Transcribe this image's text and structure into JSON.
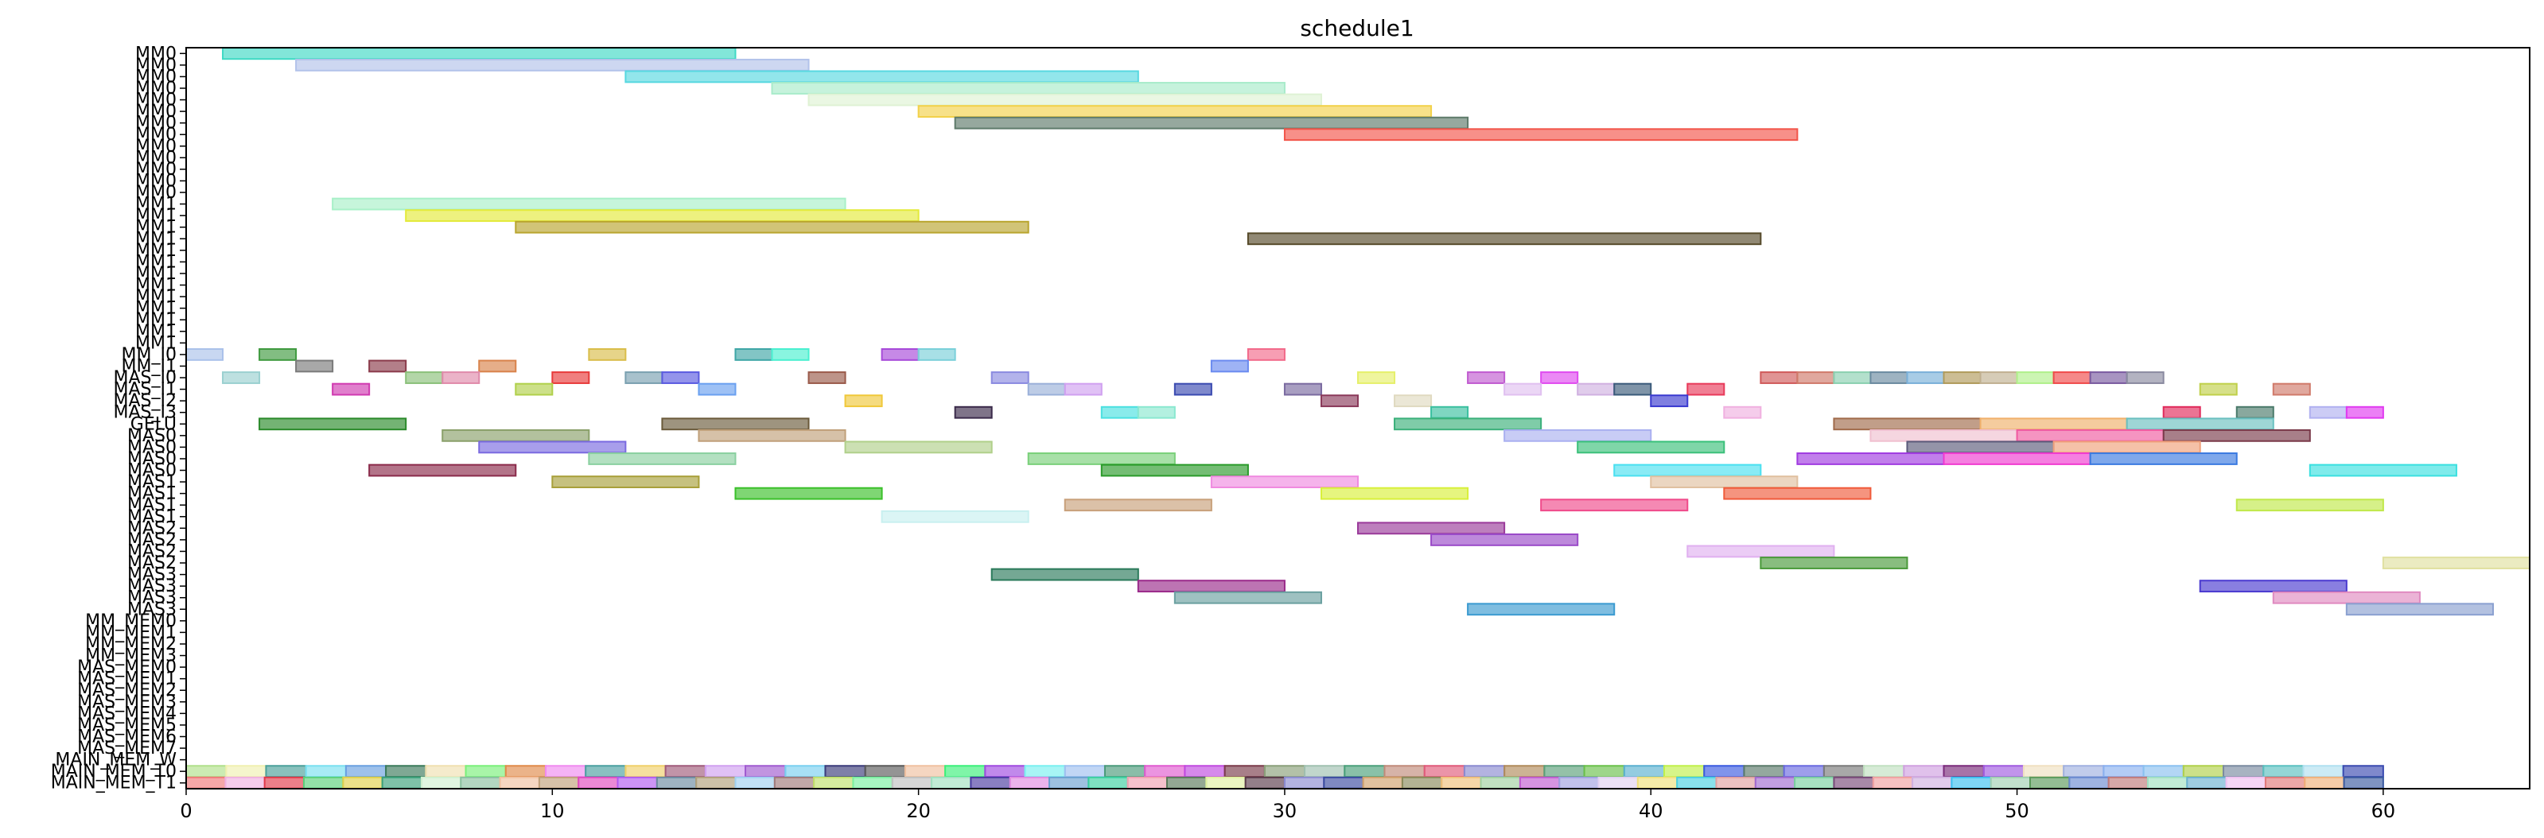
{
  "chart_data": {
    "type": "gantt",
    "title": "schedule1",
    "xlabel": "",
    "ylabel": "",
    "xlim": [
      0,
      64
    ],
    "xticks": [
      0,
      10,
      20,
      30,
      40,
      50,
      60
    ],
    "grid": false,
    "rows": [
      "MM0",
      "MM0",
      "MM0",
      "MM0",
      "MM0",
      "MM0",
      "MM0",
      "MM0",
      "MM0",
      "MM0",
      "MM0",
      "MM0",
      "MM0",
      "MM1",
      "MM1",
      "MM1",
      "MM1",
      "MM1",
      "MM1",
      "MM1",
      "MM1",
      "MM1",
      "MM1",
      "MM1",
      "MM1",
      "MM1",
      "MM_I0",
      "MM_I1",
      "MAS_I0",
      "MAS_I1",
      "MAS_I2",
      "MAS_I3",
      "GELU",
      "MAS0",
      "MAS0",
      "MAS0",
      "MAS0",
      "MAS1",
      "MAS1",
      "MAS1",
      "MAS1",
      "MAS2",
      "MAS2",
      "MAS2",
      "MAS2",
      "MAS3",
      "MAS3",
      "MAS3",
      "MAS3",
      "MM_MEM0",
      "MM_MEM1",
      "MM_MEM2",
      "MM_MEM3",
      "MAS_MEM0",
      "MAS_MEM1",
      "MAS_MEM2",
      "MAS_MEM3",
      "MAS_MEM4",
      "MAS_MEM5",
      "MAS_MEM6",
      "MAS_MEM7",
      "MAIN_MEM_W",
      "MAIN_MEM_T0",
      "MAIN_MEM_T1"
    ],
    "tasks": [
      {
        "row": 0,
        "start": 1,
        "end": 15,
        "color": "#3fd9c4"
      },
      {
        "row": 1,
        "start": 3,
        "end": 17,
        "color": "#b2c2ea"
      },
      {
        "row": 2,
        "start": 12,
        "end": 26,
        "color": "#57d8e0"
      },
      {
        "row": 3,
        "start": 16,
        "end": 30,
        "color": "#a8ebca"
      },
      {
        "row": 4,
        "start": 17,
        "end": 31,
        "color": "#dff2d4"
      },
      {
        "row": 5,
        "start": 20,
        "end": 34,
        "color": "#f2d14a"
      },
      {
        "row": 6,
        "start": 21,
        "end": 35,
        "color": "#5e7a6a"
      },
      {
        "row": 7,
        "start": 30,
        "end": 44,
        "color": "#f2554a"
      },
      {
        "row": 13,
        "start": 4,
        "end": 18,
        "color": "#a8f0c8"
      },
      {
        "row": 14,
        "start": 6,
        "end": 20,
        "color": "#e3ea3a"
      },
      {
        "row": 15,
        "start": 9,
        "end": 23,
        "color": "#b9a52e"
      },
      {
        "row": 16,
        "start": 29,
        "end": 43,
        "color": "#564a2a"
      },
      {
        "row": 26,
        "start": 0,
        "end": 1,
        "color": "#aac1ea"
      },
      {
        "row": 26,
        "start": 2,
        "end": 3,
        "color": "#3f9a3f"
      },
      {
        "row": 26,
        "start": 11,
        "end": 12,
        "color": "#d9bd4a"
      },
      {
        "row": 26,
        "start": 15,
        "end": 16,
        "color": "#3fa6a6"
      },
      {
        "row": 26,
        "start": 16,
        "end": 17,
        "color": "#4af0d0"
      },
      {
        "row": 26,
        "start": 19,
        "end": 20,
        "color": "#a74ad9"
      },
      {
        "row": 26,
        "start": 20,
        "end": 21,
        "color": "#7ad0d9"
      },
      {
        "row": 26,
        "start": 29,
        "end": 30,
        "color": "#f26a8a"
      },
      {
        "row": 27,
        "start": 3,
        "end": 4,
        "color": "#7a7a7a"
      },
      {
        "row": 27,
        "start": 5,
        "end": 6,
        "color": "#8a3a4a"
      },
      {
        "row": 27,
        "start": 8,
        "end": 9,
        "color": "#d9824a"
      },
      {
        "row": 27,
        "start": 28,
        "end": 29,
        "color": "#6a8af0"
      },
      {
        "row": 28,
        "start": 1,
        "end": 2,
        "color": "#9ad0d0"
      },
      {
        "row": 28,
        "start": 6,
        "end": 7,
        "color": "#8ac07a"
      },
      {
        "row": 28,
        "start": 7,
        "end": 8,
        "color": "#e08aaa"
      },
      {
        "row": 28,
        "start": 10,
        "end": 11,
        "color": "#e83a3a"
      },
      {
        "row": 28,
        "start": 12,
        "end": 13,
        "color": "#7aa0b0"
      },
      {
        "row": 28,
        "start": 13,
        "end": 14,
        "color": "#5a5ae0"
      },
      {
        "row": 28,
        "start": 17,
        "end": 18,
        "color": "#9a5a4a"
      },
      {
        "row": 28,
        "start": 22,
        "end": 23,
        "color": "#8a8ae0"
      },
      {
        "row": 28,
        "start": 32,
        "end": 33,
        "color": "#e6f06a"
      },
      {
        "row": 28,
        "start": 35,
        "end": 36,
        "color": "#c05ad0"
      },
      {
        "row": 28,
        "start": 37,
        "end": 38,
        "color": "#e04af0"
      },
      {
        "row": 28,
        "start": 43,
        "end": 44,
        "color": "#d05a5a"
      },
      {
        "row": 28,
        "start": 44,
        "end": 45,
        "color": "#d07a6a"
      },
      {
        "row": 28,
        "start": 45,
        "end": 46,
        "color": "#8ad0b0"
      },
      {
        "row": 28,
        "start": 46,
        "end": 47,
        "color": "#6a8aa0"
      },
      {
        "row": 28,
        "start": 47,
        "end": 48,
        "color": "#7ab0d9"
      },
      {
        "row": 28,
        "start": 48,
        "end": 49,
        "color": "#b09a5a"
      },
      {
        "row": 28,
        "start": 49,
        "end": 50,
        "color": "#c0b090"
      },
      {
        "row": 28,
        "start": 50,
        "end": 51,
        "color": "#b0f08a"
      },
      {
        "row": 28,
        "start": 51,
        "end": 52,
        "color": "#f04a4a"
      },
      {
        "row": 28,
        "start": 52,
        "end": 53,
        "color": "#7a5aa0"
      },
      {
        "row": 28,
        "start": 53,
        "end": 54,
        "color": "#8a8aa0"
      },
      {
        "row": 29,
        "start": 4,
        "end": 5,
        "color": "#d03ab0"
      },
      {
        "row": 29,
        "start": 9,
        "end": 10,
        "color": "#b0d04a"
      },
      {
        "row": 29,
        "start": 14,
        "end": 15,
        "color": "#6aa0f0"
      },
      {
        "row": 29,
        "start": 23,
        "end": 24,
        "color": "#9ab0d9"
      },
      {
        "row": 29,
        "start": 24,
        "end": 25,
        "color": "#d0a0f0"
      },
      {
        "row": 29,
        "start": 27,
        "end": 28,
        "color": "#3a4ab0"
      },
      {
        "row": 29,
        "start": 30,
        "end": 31,
        "color": "#7a6aa0"
      },
      {
        "row": 29,
        "start": 36,
        "end": 37,
        "color": "#e0c0f0"
      },
      {
        "row": 29,
        "start": 38,
        "end": 39,
        "color": "#d0b0e0"
      },
      {
        "row": 29,
        "start": 39,
        "end": 40,
        "color": "#3a5a7a"
      },
      {
        "row": 29,
        "start": 41,
        "end": 42,
        "color": "#e83a5a"
      },
      {
        "row": 29,
        "start": 55,
        "end": 56,
        "color": "#c0d04a"
      },
      {
        "row": 29,
        "start": 57,
        "end": 58,
        "color": "#d07a6a"
      },
      {
        "row": 30,
        "start": 18,
        "end": 19,
        "color": "#f0c83a"
      },
      {
        "row": 30,
        "start": 33,
        "end": 34,
        "color": "#e0dac0"
      },
      {
        "row": 30,
        "start": 40,
        "end": 41,
        "color": "#3a3ad0"
      },
      {
        "row": 30,
        "start": 31,
        "end": 32,
        "color": "#8a3a5a"
      },
      {
        "row": 31,
        "start": 21,
        "end": 22,
        "color": "#3a2a4a"
      },
      {
        "row": 31,
        "start": 25,
        "end": 26,
        "color": "#4ae0e0"
      },
      {
        "row": 31,
        "start": 26,
        "end": 27,
        "color": "#8ae8d0"
      },
      {
        "row": 31,
        "start": 34,
        "end": 35,
        "color": "#3ac0a0"
      },
      {
        "row": 31,
        "start": 42,
        "end": 43,
        "color": "#f0b0e0"
      },
      {
        "row": 31,
        "start": 54,
        "end": 55,
        "color": "#e02a5a"
      },
      {
        "row": 31,
        "start": 56,
        "end": 57,
        "color": "#4a7a6a"
      },
      {
        "row": 31,
        "start": 58,
        "end": 59,
        "color": "#b0b0f0"
      },
      {
        "row": 31,
        "start": 59,
        "end": 60,
        "color": "#e03af0"
      },
      {
        "row": 32,
        "start": 2,
        "end": 6,
        "color": "#2a8a2a"
      },
      {
        "row": 32,
        "start": 13,
        "end": 17,
        "color": "#6a5a3a"
      },
      {
        "row": 32,
        "start": 33,
        "end": 37,
        "color": "#3ab07a"
      },
      {
        "row": 32,
        "start": 45,
        "end": 49,
        "color": "#a06a4a"
      },
      {
        "row": 32,
        "start": 49,
        "end": 53,
        "color": "#f0b06a"
      },
      {
        "row": 32,
        "start": 53,
        "end": 57,
        "color": "#6ac0c0"
      },
      {
        "row": 33,
        "start": 7,
        "end": 11,
        "color": "#8aa06a"
      },
      {
        "row": 33,
        "start": 14,
        "end": 18,
        "color": "#c0a07a"
      },
      {
        "row": 33,
        "start": 36,
        "end": 40,
        "color": "#aab0f0"
      },
      {
        "row": 33,
        "start": 46,
        "end": 50,
        "color": "#f0c0d0"
      },
      {
        "row": 33,
        "start": 50,
        "end": 54,
        "color": "#f05aa0"
      },
      {
        "row": 33,
        "start": 54,
        "end": 58,
        "color": "#7a3a4a"
      },
      {
        "row": 34,
        "start": 8,
        "end": 12,
        "color": "#7a6ae0"
      },
      {
        "row": 34,
        "start": 18,
        "end": 22,
        "color": "#b0d08a"
      },
      {
        "row": 34,
        "start": 38,
        "end": 42,
        "color": "#3ac07a"
      },
      {
        "row": 34,
        "start": 47,
        "end": 51,
        "color": "#5a5a7a"
      },
      {
        "row": 34,
        "start": 51,
        "end": 55,
        "color": "#f0a07a"
      },
      {
        "row": 35,
        "start": 11,
        "end": 15,
        "color": "#8ad0a0"
      },
      {
        "row": 35,
        "start": 23,
        "end": 27,
        "color": "#7ad07a"
      },
      {
        "row": 35,
        "start": 44,
        "end": 48,
        "color": "#a03ae0"
      },
      {
        "row": 35,
        "start": 48,
        "end": 52,
        "color": "#f03ad0"
      },
      {
        "row": 35,
        "start": 52,
        "end": 56,
        "color": "#3a7ae0"
      },
      {
        "row": 36,
        "start": 5,
        "end": 9,
        "color": "#8a2a4a"
      },
      {
        "row": 36,
        "start": 25,
        "end": 29,
        "color": "#2a9a2a"
      },
      {
        "row": 36,
        "start": 39,
        "end": 43,
        "color": "#4ae0f0"
      },
      {
        "row": 36,
        "start": 58,
        "end": 62,
        "color": "#3ae0e0"
      },
      {
        "row": 37,
        "start": 10,
        "end": 14,
        "color": "#a8a03a"
      },
      {
        "row": 37,
        "start": 28,
        "end": 32,
        "color": "#f08ae0"
      },
      {
        "row": 37,
        "start": 40,
        "end": 44,
        "color": "#e0c0a0"
      },
      {
        "row": 38,
        "start": 15,
        "end": 19,
        "color": "#3ac02a"
      },
      {
        "row": 38,
        "start": 31,
        "end": 35,
        "color": "#d8f03a"
      },
      {
        "row": 38,
        "start": 42,
        "end": 46,
        "color": "#f05a3a"
      },
      {
        "row": 39,
        "start": 24,
        "end": 28,
        "color": "#c8a07a"
      },
      {
        "row": 39,
        "start": 37,
        "end": 41,
        "color": "#f04a8a"
      },
      {
        "row": 39,
        "start": 56,
        "end": 60,
        "color": "#c0e84a"
      },
      {
        "row": 40,
        "start": 19,
        "end": 23,
        "color": "#c8f0f0"
      },
      {
        "row": 41,
        "start": 32,
        "end": 36,
        "color": "#9a3a9a"
      },
      {
        "row": 42,
        "start": 34,
        "end": 38,
        "color": "#9a4ac8"
      },
      {
        "row": 43,
        "start": 41,
        "end": 45,
        "color": "#e0b0f0"
      },
      {
        "row": 44,
        "start": 43,
        "end": 47,
        "color": "#4a9a3a"
      },
      {
        "row": 44,
        "start": 60,
        "end": 64,
        "color": "#e0e0a0"
      },
      {
        "row": 45,
        "start": 22,
        "end": 26,
        "color": "#2a7a5a"
      },
      {
        "row": 46,
        "start": 26,
        "end": 30,
        "color": "#9a2a8a"
      },
      {
        "row": 46,
        "start": 55,
        "end": 59,
        "color": "#4a3ad0"
      },
      {
        "row": 47,
        "start": 27,
        "end": 31,
        "color": "#6aa0a0"
      },
      {
        "row": 47,
        "start": 57,
        "end": 61,
        "color": "#e08ac0"
      },
      {
        "row": 48,
        "start": 35,
        "end": 39,
        "color": "#3a9ad0"
      },
      {
        "row": 48,
        "start": 59,
        "end": 63,
        "color": "#8aa0d0"
      }
    ],
    "memory_rows": {
      "MAIN_MEM_T0": [
        "#b0e08a",
        "#f0f0b0",
        "#4aa09a",
        "#7ae0f0",
        "#6aa0e0",
        "#3a7a5a",
        "#f0e0b0",
        "#7af07a",
        "#e08a4a",
        "#f08af0",
        "#4aa0a0",
        "#f0d06a",
        "#a05a7a",
        "#d0a0f0",
        "#a05ad0",
        "#7ad0f0",
        "#3a3a7a",
        "#5a5a5a",
        "#f0c0a0",
        "#3af07a",
        "#a04ae0",
        "#7af0f0",
        "#a0c0f0",
        "#4a9a7a",
        "#e05ad0",
        "#c04ae0",
        "#7a3a4a",
        "#8aa07a",
        "#a0c0b0",
        "#4aa07a",
        "#c08a7a",
        "#e05a7a",
        "#8a8ad0",
        "#b08a5a",
        "#5aa07a",
        "#6ac04a",
        "#5ab0d0",
        "#c0f04a",
        "#3a5ae0",
        "#5a7a6a",
        "#6a6ae0",
        "#7a7a7a",
        "#c0e0c0",
        "#d0a0e0",
        "#7a2a7a",
        "#a05ae0",
        "#f0e0c0",
        "#a0b0e0",
        "#8ab0f0",
        "#8ac0f0",
        "#b0d04a",
        "#7a8aa0",
        "#5ac0c0",
        "#b0e0f0",
        "#3a4ab0"
      ],
      "MAIN_MEM_T1": [
        "#f07a7a",
        "#f0b0e0",
        "#e03a4a",
        "#5ad07a",
        "#e0d04a",
        "#3aa07a",
        "#d0f0d0",
        "#8ac0a0",
        "#f0c0a0",
        "#c0a07a",
        "#e04ac0",
        "#b05af0",
        "#6a8aa0",
        "#b0a07a",
        "#a0d0f0",
        "#a07a7a",
        "#c0e06a",
        "#7af0a0",
        "#c0c0c0",
        "#a0e0c0",
        "#4a3aa0",
        "#e08ae0",
        "#6aa0d0",
        "#3ad0a0",
        "#f0a0b0",
        "#5a7a5a",
        "#e0f0a0",
        "#5a3a4a",
        "#8a8ad0",
        "#3a4aa0",
        "#d0a06a",
        "#8a8a5a",
        "#f0c07a",
        "#a0d0a0",
        "#c05ad0",
        "#a0a0e0",
        "#e0d0f0",
        "#f0e07a",
        "#4ad0e0",
        "#e0a0a0",
        "#a06ad0",
        "#7ad0a0",
        "#7a4a7a",
        "#f0a0a0",
        "#d0b0e0",
        "#3ac0f0",
        "#a0d0b0",
        "#5a9a5a",
        "#6a8ad0",
        "#c07a7a",
        "#a0e0c0",
        "#6ab0d0",
        "#f0c0f0",
        "#e07a7a",
        "#f0b07a",
        "#3a5aa0"
      ]
    }
  }
}
